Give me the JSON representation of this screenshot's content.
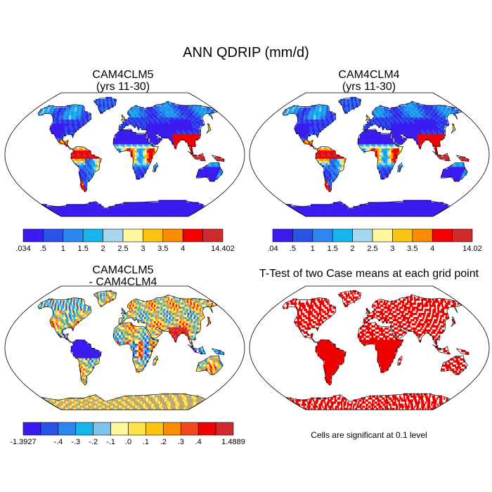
{
  "figure": {
    "title": "ANN QDRIP (mm/d)"
  },
  "panels": [
    {
      "id": "clm5",
      "title_line1": "CAM4CLM5",
      "title_line2": "(yrs 11-30)"
    },
    {
      "id": "clm4",
      "title_line1": "CAM4CLM4",
      "title_line2": "(yrs 11-30)"
    },
    {
      "id": "diff",
      "title_line1": "CAM4CLM5",
      "title_line2": "- CAM4CLM4"
    },
    {
      "id": "ttest",
      "title_line1": "T-Test of two Case means at each grid point",
      "title_line2": ""
    }
  ],
  "colorbars": {
    "clm5": {
      "colors": [
        "#3a1cf0",
        "#2a52e6",
        "#2b86ef",
        "#17b5ee",
        "#a6d7ee",
        "#fff79b",
        "#fcc411",
        "#fb8c00",
        "#f40000",
        "#d02a2e"
      ],
      "labels": [
        ".034",
        ".5",
        "1",
        "1.5",
        "2",
        "2.5",
        "3",
        "3.5",
        "4",
        "",
        "14.402"
      ]
    },
    "clm4": {
      "colors": [
        "#3a1cf0",
        "#2a52e6",
        "#2b86ef",
        "#17b5ee",
        "#a6d7ee",
        "#fff79b",
        "#fcc411",
        "#fb8c00",
        "#f40000",
        "#d02a2e"
      ],
      "labels": [
        ".04",
        ".5",
        "1",
        "1.5",
        "2",
        "2.5",
        "3",
        "3.5",
        "4",
        "",
        "14.02"
      ]
    },
    "diff": {
      "colors": [
        "#3a1cf0",
        "#2a52e6",
        "#2b86ef",
        "#17b5ee",
        "#7fc3ec",
        "#fff79b",
        "#ffe34a",
        "#fcc411",
        "#fb8c00",
        "#f4471d",
        "#f40000",
        "#d02a2e"
      ],
      "labels": [
        "-1.3927",
        "",
        "-.4",
        "-.3",
        "-.2",
        "-.1",
        ".0",
        ".1",
        ".2",
        ".3",
        ".4",
        "",
        "1.4889"
      ]
    }
  },
  "significance_note": "Cells are significant at 0.1 level",
  "colors": {
    "significant": "#ee0000",
    "ocean": "#ffffff",
    "coast": "#000000"
  }
}
